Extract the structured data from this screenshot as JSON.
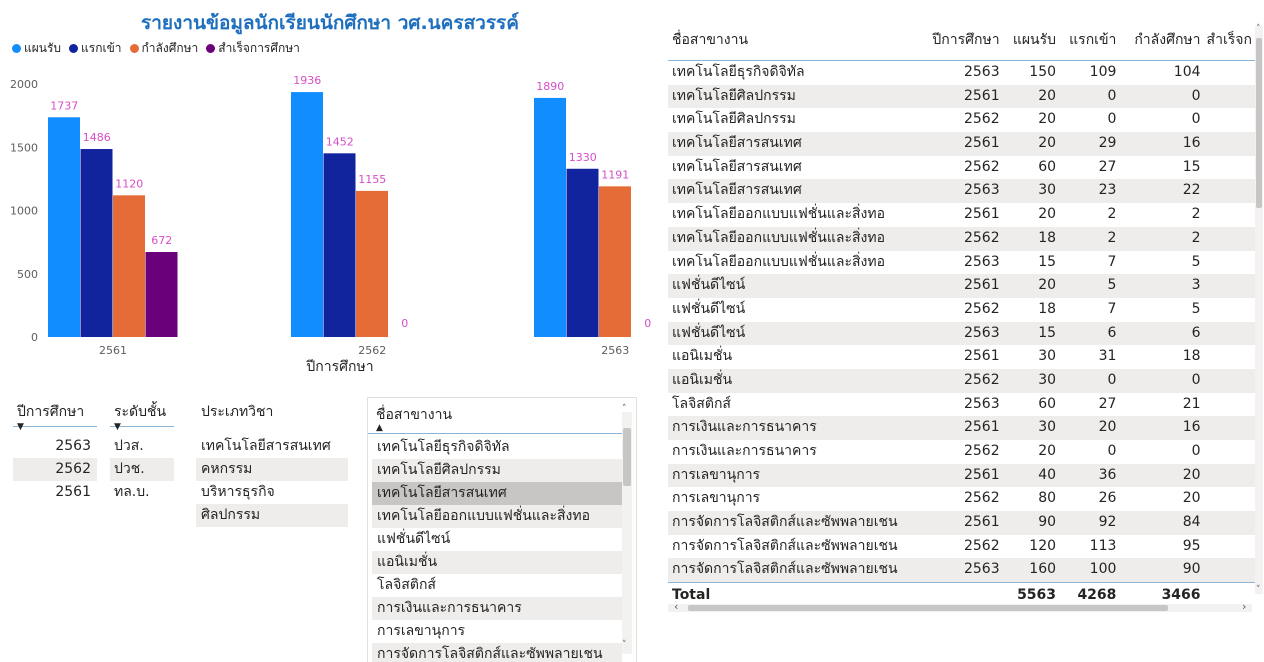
{
  "title": "รายงานข้อมูลนักเรียนนักศึกษา วศ.นครสวรรค์",
  "chart_data": {
    "type": "bar",
    "categories": [
      "2561",
      "2562",
      "2563"
    ],
    "xlabel": "ปีการศึกษา",
    "ylabel": "",
    "ylim": [
      0,
      2000
    ],
    "yticks": [
      "0",
      "500",
      "1000",
      "1500",
      "2000"
    ],
    "legend_position": "top-left",
    "series": [
      {
        "name": "แผนรับ",
        "color": "#118dff",
        "values": [
          1737,
          1936,
          1890
        ]
      },
      {
        "name": "แรกเข้า",
        "color": "#12239e",
        "values": [
          1486,
          1452,
          1330
        ]
      },
      {
        "name": "กำลังศึกษา",
        "color": "#e66c37",
        "values": [
          1120,
          1155,
          1191
        ]
      },
      {
        "name": "สำเร็จการศึกษา",
        "color": "#6b007b",
        "values": [
          672,
          0,
          0
        ]
      }
    ],
    "label_color": "#d64ec9"
  },
  "slicers": {
    "year": {
      "header": "ปีการศึกษา",
      "items": [
        "2563",
        "2562",
        "2561"
      ]
    },
    "level": {
      "header": "ระดับชั้น",
      "items": [
        "ปวส.",
        "ปวช.",
        "ทล.บ."
      ]
    },
    "type": {
      "header": "ประเภทวิชา",
      "items": [
        "เทคโนโลยีสารสนเทศ",
        "คหกรรม",
        "บริหารธุรกิจ",
        "ศิลปกรรม"
      ]
    },
    "major": {
      "header": "ชื่อสาขางาน",
      "selected_index": 2,
      "items": [
        "เทคโนโลยีธุรกิจดิจิทัล",
        "เทคโนโลยีศิลปกรรม",
        "เทคโนโลยีสารสนเทศ",
        "เทคโนโลยีออกแบบแฟชั่นและสิ่งทอ",
        "แฟชั่นดีไซน์",
        "แอนิเมชั่น",
        "โลจิสติกส์",
        "การเงินและการธนาคาร",
        "การเลขานุการ",
        "การจัดการโลจิสติกส์และซัพพลายเชน"
      ]
    }
  },
  "table": {
    "headers": [
      "ชื่อสาขางาน",
      "ปีการศึกษา",
      "แผนรับ",
      "แรกเข้า",
      "กำลังศึกษา",
      "สำเร็จก"
    ],
    "rows": [
      [
        "เทคโนโลยีธุรกิจดิจิทัล",
        "2563",
        "150",
        "109",
        "104"
      ],
      [
        "เทคโนโลยีศิลปกรรม",
        "2561",
        "20",
        "0",
        "0"
      ],
      [
        "เทคโนโลยีศิลปกรรม",
        "2562",
        "20",
        "0",
        "0"
      ],
      [
        "เทคโนโลยีสารสนเทศ",
        "2561",
        "20",
        "29",
        "16"
      ],
      [
        "เทคโนโลยีสารสนเทศ",
        "2562",
        "60",
        "27",
        "15"
      ],
      [
        "เทคโนโลยีสารสนเทศ",
        "2563",
        "30",
        "23",
        "22"
      ],
      [
        "เทคโนโลยีออกแบบแฟชั่นและสิ่งทอ",
        "2561",
        "20",
        "2",
        "2"
      ],
      [
        "เทคโนโลยีออกแบบแฟชั่นและสิ่งทอ",
        "2562",
        "18",
        "2",
        "2"
      ],
      [
        "เทคโนโลยีออกแบบแฟชั่นและสิ่งทอ",
        "2563",
        "15",
        "7",
        "5"
      ],
      [
        "แฟชั่นดีไซน์",
        "2561",
        "20",
        "5",
        "3"
      ],
      [
        "แฟชั่นดีไซน์",
        "2562",
        "18",
        "7",
        "5"
      ],
      [
        "แฟชั่นดีไซน์",
        "2563",
        "15",
        "6",
        "6"
      ],
      [
        "แอนิเมชั่น",
        "2561",
        "30",
        "31",
        "18"
      ],
      [
        "แอนิเมชั่น",
        "2562",
        "30",
        "0",
        "0"
      ],
      [
        "โลจิสติกส์",
        "2563",
        "60",
        "27",
        "21"
      ],
      [
        "การเงินและการธนาคาร",
        "2561",
        "30",
        "20",
        "16"
      ],
      [
        "การเงินและการธนาคาร",
        "2562",
        "20",
        "0",
        "0"
      ],
      [
        "การเลขานุการ",
        "2561",
        "40",
        "36",
        "20"
      ],
      [
        "การเลขานุการ",
        "2562",
        "80",
        "26",
        "20"
      ],
      [
        "การจัดการโลจิสติกส์และซัพพลายเชน",
        "2561",
        "90",
        "92",
        "84"
      ],
      [
        "การจัดการโลจิสติกส์และซัพพลายเชน",
        "2562",
        "120",
        "113",
        "95"
      ],
      [
        "การจัดการโลจิสติกส์และซัพพลายเชน",
        "2563",
        "160",
        "100",
        "90"
      ]
    ],
    "total": [
      "Total",
      "",
      "5563",
      "4268",
      "3466"
    ]
  }
}
